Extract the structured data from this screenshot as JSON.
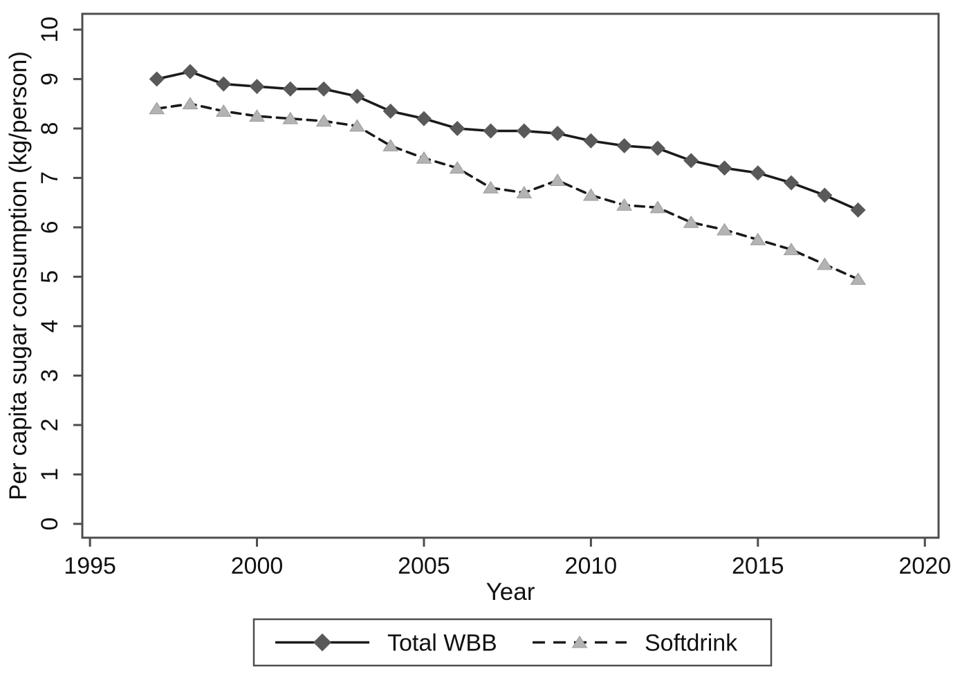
{
  "figure": {
    "background": "#ffffff"
  },
  "chart_data": {
    "type": "line",
    "title": "",
    "xlabel": "Year",
    "ylabel": "Per capita sugar consumption (kg/person)",
    "xlim": [
      1994.77,
      2020.41
    ],
    "ylim": [
      -0.28,
      10.32
    ],
    "x_ticks": [
      1995,
      2000,
      2005,
      2010,
      2015,
      2020
    ],
    "y_ticks": [
      0,
      1,
      2,
      3,
      4,
      5,
      6,
      7,
      8,
      9,
      10
    ],
    "grid": false,
    "legend_position": "bottom-center-outside",
    "x": [
      1997,
      1998,
      1999,
      2000,
      2001,
      2002,
      2003,
      2004,
      2005,
      2006,
      2007,
      2008,
      2009,
      2010,
      2011,
      2012,
      2013,
      2014,
      2015,
      2016,
      2017,
      2018
    ],
    "series": [
      {
        "name": "Total WBB",
        "marker": "diamond",
        "line_style": "solid",
        "line_color": "#1a1a1a",
        "marker_color": "#595959",
        "values": [
          9.0,
          9.15,
          8.9,
          8.85,
          8.8,
          8.8,
          8.65,
          8.35,
          8.2,
          8.0,
          7.95,
          7.95,
          7.9,
          7.75,
          7.65,
          7.6,
          7.35,
          7.2,
          7.1,
          6.9,
          6.65,
          6.35
        ]
      },
      {
        "name": "Softdrink",
        "marker": "triangle",
        "line_style": "dashed",
        "line_color": "#1a1a1a",
        "marker_color": "#b3b3b3",
        "values": [
          8.4,
          8.5,
          8.35,
          8.25,
          8.2,
          8.15,
          8.05,
          7.65,
          7.4,
          7.2,
          6.8,
          6.7,
          6.95,
          6.65,
          6.45,
          6.4,
          6.1,
          5.95,
          5.75,
          5.55,
          5.25,
          4.95
        ]
      }
    ],
    "colors": {
      "axis": "#4d4d4d",
      "text": "#111111",
      "background": "#ffffff"
    }
  }
}
